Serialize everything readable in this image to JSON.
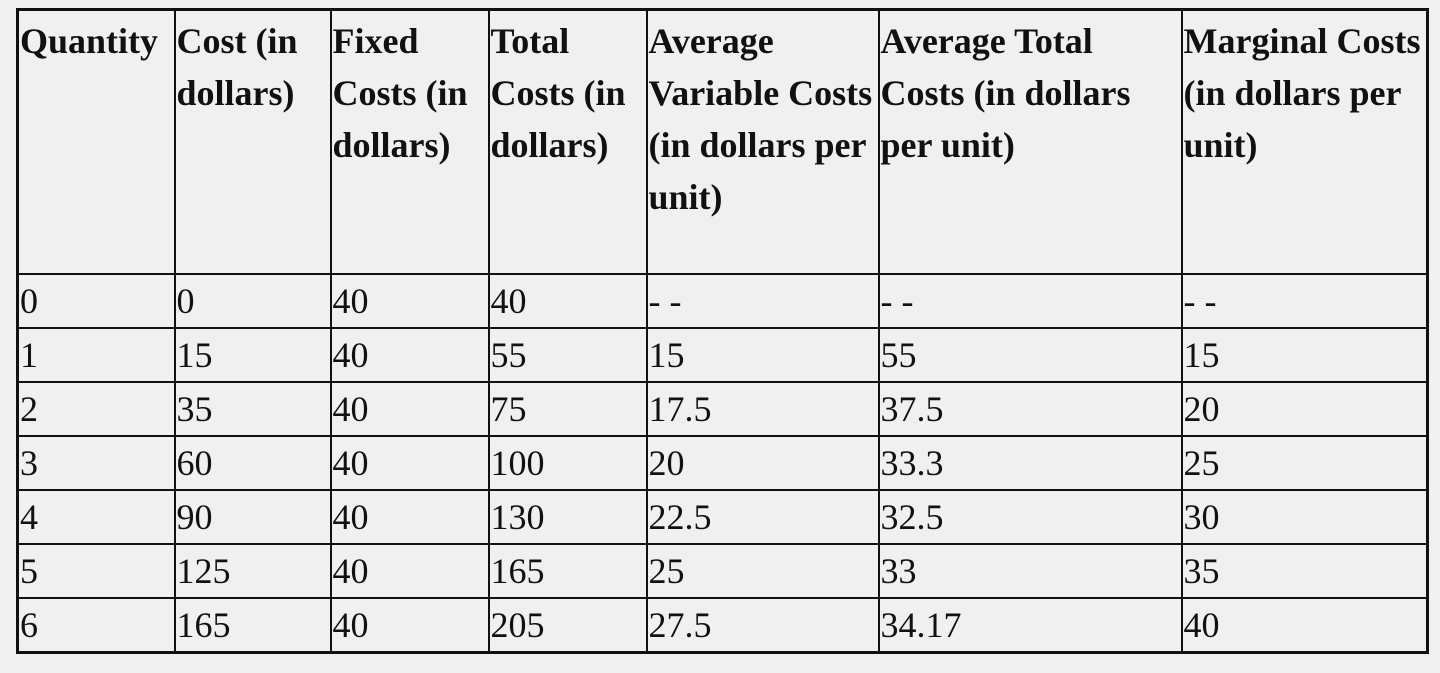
{
  "table": {
    "headers": [
      "Quantity",
      "Cost (in dollars)",
      "Fixed Costs (in dollars)",
      "Total Costs (in dollars)",
      "Average Variable Costs (in dollars per unit)",
      "Average Total Costs (in dollars per unit)",
      "Marginal Costs (in dollars per unit)"
    ],
    "rows": [
      [
        "0",
        "0",
        "40",
        "40",
        "- -",
        "- -",
        "- -"
      ],
      [
        "1",
        "15",
        "40",
        "55",
        "15",
        "55",
        "15"
      ],
      [
        "2",
        "35",
        "40",
        "75",
        "17.5",
        "37.5",
        "20"
      ],
      [
        "3",
        "60",
        "40",
        "100",
        "20",
        "33.3",
        "25"
      ],
      [
        "4",
        "90",
        "40",
        "130",
        "22.5",
        "32.5",
        "30"
      ],
      [
        "5",
        "125",
        "40",
        "165",
        "25",
        "33",
        "35"
      ],
      [
        "6",
        "165",
        "40",
        "205",
        "27.5",
        "34.17",
        "40"
      ]
    ]
  }
}
